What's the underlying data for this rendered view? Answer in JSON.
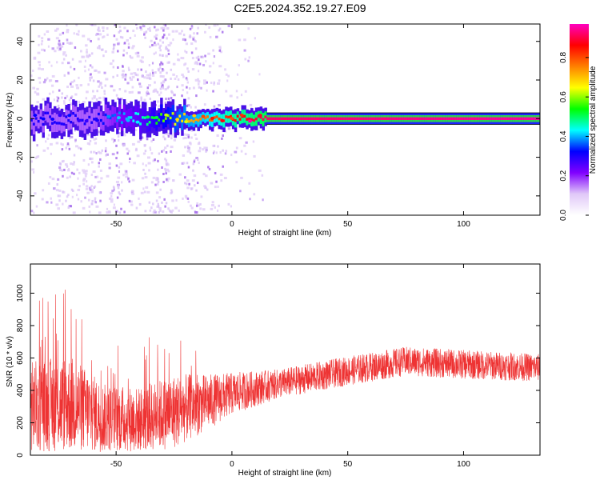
{
  "title": "C2E5.2024.352.19.27.E09",
  "chart_data": [
    {
      "type": "heatmap",
      "xlabel": "Height of straight line (km)",
      "ylabel": "Frequency (Hz)",
      "xlim": [
        -87,
        133
      ],
      "ylim": [
        -50,
        49
      ],
      "xticks": [
        -50,
        0,
        50,
        100
      ],
      "yticks": [
        -40,
        -20,
        0,
        20,
        40
      ],
      "colorbar": {
        "label": "Normalized spectral amplitude",
        "range": [
          0.0,
          0.97
        ],
        "ticks": [
          0.0,
          0.2,
          0.4,
          0.6,
          0.8
        ],
        "colors": [
          "#ffffff",
          "#e0c8f8",
          "#8000ff",
          "#0000ff",
          "#00ffff",
          "#00ff00",
          "#ffff00",
          "#ff8000",
          "#ff0000",
          "#ff00c0"
        ]
      },
      "carrier_band": {
        "frequency_hz": 0,
        "half_width_hz": 3,
        "from_km": -87,
        "to_km": 133
      },
      "band_amplitude_profile": [
        {
          "km": -87,
          "amp": 0.3
        },
        {
          "km": -60,
          "amp": 0.3
        },
        {
          "km": -40,
          "amp": 0.45
        },
        {
          "km": -20,
          "amp": 0.7
        },
        {
          "km": 0,
          "amp": 0.85
        },
        {
          "km": 15,
          "amp": 0.92
        },
        {
          "km": 133,
          "amp": 0.95
        }
      ]
    },
    {
      "type": "line",
      "xlabel": "Height of straight line (km)",
      "ylabel": "SNR (10 * v/v)",
      "xlim": [
        -87,
        133
      ],
      "ylim": [
        0,
        1180
      ],
      "xticks": [
        -50,
        0,
        50,
        100
      ],
      "yticks": [
        0,
        200,
        400,
        600,
        800,
        1000
      ],
      "color": "#ee3333",
      "envelope": [
        {
          "x": -87,
          "mean": 300,
          "spread": 280
        },
        {
          "x": -70,
          "mean": 320,
          "spread": 300
        },
        {
          "x": -55,
          "mean": 230,
          "spread": 210
        },
        {
          "x": -40,
          "mean": 220,
          "spread": 200
        },
        {
          "x": -25,
          "mean": 270,
          "spread": 230
        },
        {
          "x": -10,
          "mean": 330,
          "spread": 170
        },
        {
          "x": 0,
          "mean": 380,
          "spread": 130
        },
        {
          "x": 20,
          "mean": 440,
          "spread": 90
        },
        {
          "x": 50,
          "mean": 520,
          "spread": 90
        },
        {
          "x": 75,
          "mean": 580,
          "spread": 90
        },
        {
          "x": 100,
          "mean": 560,
          "spread": 90
        },
        {
          "x": 133,
          "mean": 540,
          "spread": 85
        }
      ]
    }
  ]
}
